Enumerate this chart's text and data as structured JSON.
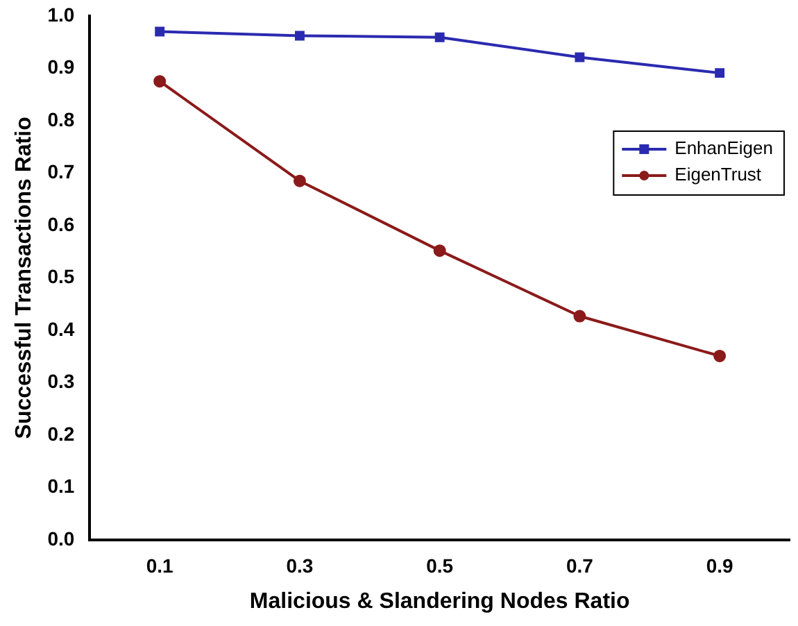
{
  "chart_data": {
    "type": "line",
    "xlabel": "Malicious & Slandering Nodes Ratio",
    "ylabel": "Successful Transactions Ratio",
    "x": [
      0.1,
      0.3,
      0.5,
      0.7,
      0.9
    ],
    "series": [
      {
        "name": "EnhanEigen",
        "color": "#2a2ab0",
        "marker": "square",
        "values": [
          0.97,
          0.962,
          0.959,
          0.921,
          0.891
        ]
      },
      {
        "name": "EigenTrust",
        "color": "#8b1a1a",
        "marker": "circle",
        "values": [
          0.875,
          0.685,
          0.552,
          0.427,
          0.351
        ]
      }
    ],
    "xlim": [
      0,
      1
    ],
    "xticks": [
      0.1,
      0.3,
      0.5,
      0.7,
      0.9
    ],
    "ylim": [
      0,
      1
    ],
    "yticks": [
      {
        "value": 0,
        "label": "0.0"
      },
      0.1,
      0.2,
      0.3,
      0.4,
      0.5,
      0.6,
      0.7,
      0.8,
      0.9,
      {
        "value": 1,
        "label": "1.0"
      }
    ],
    "grid": false,
    "legend": "right",
    "line_style": "solid"
  }
}
